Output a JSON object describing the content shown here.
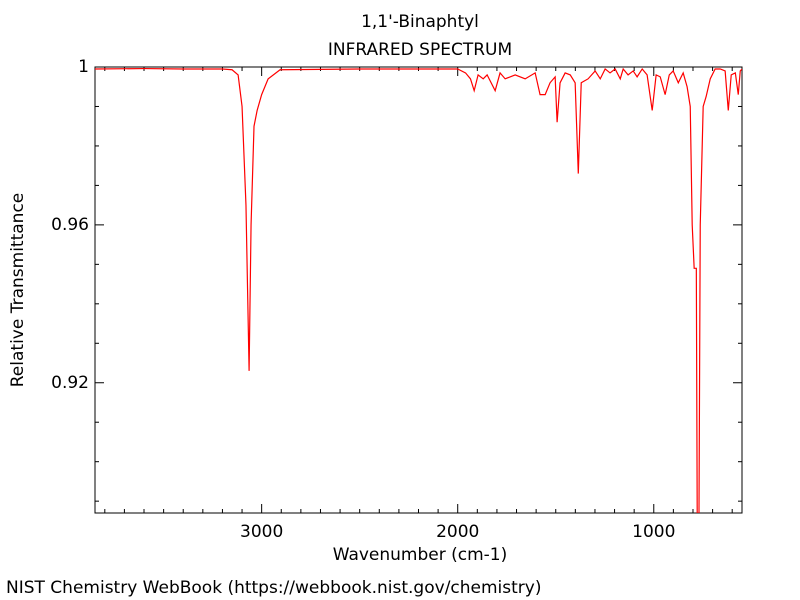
{
  "chart_data": {
    "type": "line",
    "title": "1,1'-Binaphtyl",
    "subtitle": "INFRARED SPECTRUM",
    "x_label": "Wavenumber (cm-1)",
    "y_label": "Relative Transmittance",
    "source": "NIST Chemistry WebBook (https://webbook.nist.gov/chemistry)",
    "xlim": [
      3850,
      550
    ],
    "ylim": [
      0.887,
      1.0
    ],
    "xticks": [
      3000,
      2000,
      1000
    ],
    "yticks": [
      0.92,
      0.96,
      1
    ],
    "xminorticks": [
      3800,
      3700,
      3600,
      3500,
      3400,
      3300,
      3200,
      3100,
      2900,
      2800,
      2700,
      2600,
      2500,
      2400,
      2300,
      2200,
      2100,
      1900,
      1800,
      1700,
      1600,
      1500,
      1400,
      1300,
      1200,
      1100,
      900,
      800,
      700,
      600
    ],
    "yminorticks": [
      0.89,
      0.9,
      0.91,
      0.93,
      0.94,
      0.95,
      0.97,
      0.98,
      0.99
    ],
    "x": [
      3850,
      3600,
      3400,
      3200,
      3151,
      3120,
      3100,
      3080,
      3064,
      3054,
      3039,
      3023,
      3000,
      2967,
      2906,
      2500,
      2000,
      1960,
      1935,
      1916,
      1896,
      1870,
      1850,
      1809,
      1784,
      1758,
      1707,
      1656,
      1605,
      1580,
      1554,
      1529,
      1503,
      1493,
      1478,
      1452,
      1426,
      1401,
      1385,
      1370,
      1335,
      1299,
      1273,
      1248,
      1223,
      1197,
      1171,
      1156,
      1131,
      1105,
      1085,
      1059,
      1034,
      1008,
      988,
      967,
      942,
      921,
      901,
      875,
      850,
      830,
      814,
      804,
      794,
      783,
      778,
      770,
      763,
      748,
      733,
      712,
      687,
      661,
      636,
      620,
      605,
      584,
      569,
      559,
      550
    ],
    "series": [
      {
        "name": "1,1'-Binaphtyl",
        "color": "#ff0000",
        "values": [
          0.9995,
          0.9996,
          0.9995,
          0.9995,
          0.9993,
          0.998,
          0.99,
          0.965,
          0.923,
          0.96,
          0.985,
          0.989,
          0.993,
          0.997,
          0.9993,
          0.9995,
          0.9995,
          0.9985,
          0.997,
          0.994,
          0.998,
          0.997,
          0.998,
          0.994,
          0.9985,
          0.997,
          0.998,
          0.997,
          0.9985,
          0.993,
          0.993,
          0.996,
          0.9975,
          0.986,
          0.996,
          0.9985,
          0.998,
          0.996,
          0.973,
          0.996,
          0.997,
          0.999,
          0.997,
          0.9995,
          0.9985,
          0.9995,
          0.997,
          0.9995,
          0.998,
          0.999,
          0.9975,
          0.9995,
          0.998,
          0.989,
          0.998,
          0.9975,
          0.993,
          0.998,
          0.999,
          0.996,
          0.9985,
          0.995,
          0.99,
          0.96,
          0.949,
          0.949,
          0.88,
          0.88,
          0.96,
          0.99,
          0.9925,
          0.997,
          0.9995,
          0.9995,
          0.999,
          0.989,
          0.998,
          0.9985,
          0.993,
          0.999,
          0.9995
        ]
      }
    ]
  }
}
